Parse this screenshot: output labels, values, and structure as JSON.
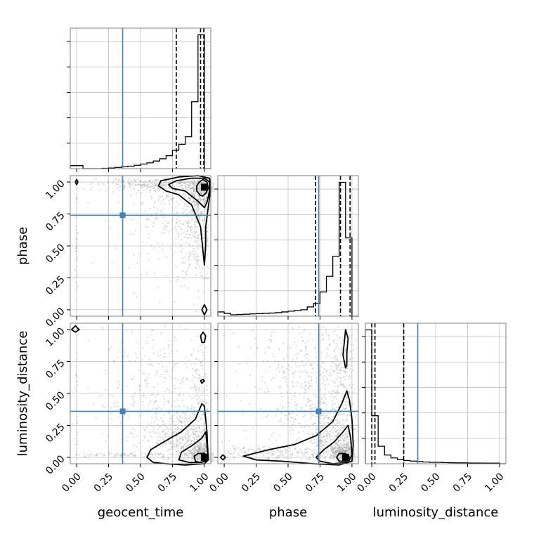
{
  "chart_data": {
    "type": "corner",
    "parameters": [
      "geocent_time",
      "phase",
      "luminosity_distance"
    ],
    "axis_labels": {
      "x": [
        "geocent_time",
        "phase",
        "luminosity_distance"
      ],
      "y": [
        "phase",
        "luminosity_distance"
      ]
    },
    "tick_labels": [
      "0.00",
      "0.25",
      "0.50",
      "0.75",
      "1.00"
    ],
    "tick_values": [
      0.0,
      0.25,
      0.5,
      0.75,
      1.0
    ],
    "axis_range": [
      -0.05,
      1.05
    ],
    "grid": true,
    "colors": {
      "hist": "#000000",
      "truth": "#4682b4",
      "contour": "#000000",
      "scatter": "#9a9a9a"
    },
    "truth_values": {
      "geocent_time": 0.36,
      "phase": 0.74,
      "luminosity_distance": 0.36
    },
    "quantiles": {
      "geocent_time": [
        0.78,
        0.97,
        0.995
      ],
      "phase": [
        0.715,
        0.91,
        0.985
      ],
      "luminosity_distance": [
        0.0,
        0.025,
        0.25
      ]
    },
    "histograms": {
      "geocent_time": {
        "bin_edges": [
          -0.05,
          0.0,
          0.05,
          0.1,
          0.15,
          0.2,
          0.25,
          0.3,
          0.35,
          0.4,
          0.45,
          0.5,
          0.55,
          0.6,
          0.65,
          0.7,
          0.75,
          0.8,
          0.85,
          0.9,
          0.95,
          1.0,
          1.05
        ],
        "counts": [
          0.02,
          0.02,
          0.0,
          0.0,
          0.0,
          0.002,
          0.004,
          0.008,
          0.012,
          0.016,
          0.022,
          0.03,
          0.038,
          0.05,
          0.065,
          0.085,
          0.12,
          0.16,
          0.21,
          0.44,
          0.88,
          0.0
        ]
      },
      "phase": {
        "bin_edges": [
          -0.05,
          0.0,
          0.05,
          0.1,
          0.15,
          0.2,
          0.25,
          0.3,
          0.35,
          0.4,
          0.45,
          0.5,
          0.55,
          0.6,
          0.65,
          0.7,
          0.75,
          0.8,
          0.85,
          0.9,
          0.95,
          1.0,
          1.05
        ],
        "counts": [
          0.03,
          0.02,
          0.01,
          0.012,
          0.014,
          0.016,
          0.018,
          0.02,
          0.022,
          0.025,
          0.03,
          0.035,
          0.04,
          0.045,
          0.065,
          0.09,
          0.17,
          0.28,
          0.42,
          0.94,
          0.55,
          0.0
        ]
      },
      "luminosity_distance": {
        "bin_edges": [
          -0.05,
          0.0,
          0.05,
          0.1,
          0.15,
          0.2,
          0.25,
          0.3,
          0.35,
          0.4,
          0.45,
          0.5,
          0.55,
          0.6,
          0.65,
          0.7,
          0.75,
          0.8,
          0.85,
          0.9,
          0.95,
          1.0,
          1.05
        ],
        "counts": [
          0.92,
          0.33,
          0.12,
          0.06,
          0.04,
          0.03,
          0.022,
          0.018,
          0.015,
          0.012,
          0.01,
          0.01,
          0.008,
          0.007,
          0.006,
          0.006,
          0.005,
          0.005,
          0.004,
          0.004,
          0.004,
          0.0
        ]
      }
    },
    "scatter_density": {
      "phase_vs_geocent_time": [
        {
          "cx": 0.97,
          "cy": 0.93,
          "sx": 0.06,
          "sy": 0.07,
          "n": 260
        },
        {
          "cx": 0.95,
          "cy": 0.7,
          "sx": 0.08,
          "sy": 0.25,
          "n": 420
        },
        {
          "cx": 0.6,
          "cy": 0.98,
          "sx": 0.22,
          "sy": 0.03,
          "n": 260
        },
        {
          "cx": 0.75,
          "cy": 0.75,
          "sx": 0.22,
          "sy": 0.22,
          "n": 300
        },
        {
          "cx": 0.0,
          "cy": 0.5,
          "sx": 0.004,
          "sy": 0.3,
          "n": 40
        }
      ],
      "luminosity_distance_vs_geocent_time": [
        {
          "cx": 0.97,
          "cy": 0.03,
          "sx": 0.05,
          "sy": 0.04,
          "n": 320
        },
        {
          "cx": 0.85,
          "cy": 0.15,
          "sx": 0.12,
          "sy": 0.12,
          "n": 380
        },
        {
          "cx": 0.7,
          "cy": 0.45,
          "sx": 0.25,
          "sy": 0.3,
          "n": 500
        },
        {
          "cx": 0.97,
          "cy": 0.7,
          "sx": 0.03,
          "sy": 0.3,
          "n": 80
        },
        {
          "cx": 0.35,
          "cy": 0.02,
          "sx": 0.2,
          "sy": 0.01,
          "n": 90
        },
        {
          "cx": 0.0,
          "cy": 0.4,
          "sx": 0.004,
          "sy": 0.35,
          "n": 40
        }
      ],
      "luminosity_distance_vs_phase": [
        {
          "cx": 0.93,
          "cy": 0.03,
          "sx": 0.05,
          "sy": 0.04,
          "n": 320
        },
        {
          "cx": 0.85,
          "cy": 0.15,
          "sx": 0.1,
          "sy": 0.12,
          "n": 340
        },
        {
          "cx": 0.75,
          "cy": 0.5,
          "sx": 0.18,
          "sy": 0.3,
          "n": 420
        },
        {
          "cx": 0.93,
          "cy": 0.75,
          "sx": 0.04,
          "sy": 0.25,
          "n": 140
        },
        {
          "cx": 0.35,
          "cy": 0.04,
          "sx": 0.25,
          "sy": 0.03,
          "n": 180
        },
        {
          "cx": 0.45,
          "cy": 0.55,
          "sx": 0.25,
          "sy": 0.3,
          "n": 180
        }
      ]
    },
    "contours": {
      "phase_vs_geocent_time": [
        [
          [
            0.965,
            0.9
          ],
          [
            0.94,
            0.93
          ],
          [
            0.94,
            0.97
          ],
          [
            0.96,
            1.0
          ],
          [
            0.99,
            1.02
          ],
          [
            1.02,
            1.0
          ],
          [
            1.03,
            0.95
          ],
          [
            1.01,
            0.91
          ],
          [
            0.985,
            0.89
          ],
          [
            0.965,
            0.9
          ]
        ],
        [
          [
            0.85,
            0.93
          ],
          [
            0.75,
            0.95
          ],
          [
            0.72,
            0.98
          ],
          [
            0.78,
            1.01
          ],
          [
            0.9,
            1.03
          ],
          [
            1.0,
            1.03
          ],
          [
            1.04,
            1.0
          ],
          [
            1.04,
            0.93
          ],
          [
            1.02,
            0.84
          ],
          [
            1.0,
            0.8
          ],
          [
            0.95,
            0.85
          ],
          [
            0.85,
            0.93
          ]
        ],
        [
          [
            0.64,
            0.97
          ],
          [
            0.66,
            1.01
          ],
          [
            0.8,
            1.04
          ],
          [
            0.95,
            1.05
          ],
          [
            1.04,
            1.03
          ],
          [
            1.05,
            0.95
          ],
          [
            1.03,
            0.8
          ],
          [
            1.01,
            0.65
          ],
          [
            1.01,
            0.5
          ],
          [
            1.0,
            0.35
          ],
          [
            0.99,
            0.45
          ],
          [
            0.97,
            0.65
          ],
          [
            0.9,
            0.82
          ],
          [
            0.8,
            0.9
          ],
          [
            0.7,
            0.93
          ],
          [
            0.64,
            0.97
          ]
        ],
        [
          [
            0.0,
            0.98
          ],
          [
            -0.01,
            1.0
          ],
          [
            0.0,
            1.02
          ],
          [
            0.01,
            1.0
          ],
          [
            0.0,
            0.98
          ]
        ],
        [
          [
            1.0,
            -0.04
          ],
          [
            0.98,
            0.0
          ],
          [
            1.0,
            0.04
          ],
          [
            1.02,
            0.0
          ],
          [
            1.0,
            -0.04
          ]
        ]
      ],
      "luminosity_distance_vs_geocent_time": [
        [
          [
            0.93,
            -0.03
          ],
          [
            0.92,
            0.01
          ],
          [
            0.95,
            0.03
          ],
          [
            1.0,
            0.03
          ],
          [
            1.03,
            0.0
          ],
          [
            1.01,
            -0.03
          ],
          [
            0.96,
            -0.04
          ],
          [
            0.93,
            -0.03
          ]
        ],
        [
          [
            0.8,
            -0.02
          ],
          [
            0.82,
            0.04
          ],
          [
            0.9,
            0.09
          ],
          [
            0.98,
            0.15
          ],
          [
            1.01,
            0.2
          ],
          [
            1.02,
            0.1
          ],
          [
            1.03,
            -0.02
          ],
          [
            0.98,
            -0.04
          ],
          [
            0.88,
            -0.04
          ],
          [
            0.8,
            -0.02
          ]
        ],
        [
          [
            0.55,
            0.0
          ],
          [
            0.58,
            0.06
          ],
          [
            0.68,
            0.12
          ],
          [
            0.82,
            0.2
          ],
          [
            0.93,
            0.3
          ],
          [
            0.98,
            0.42
          ],
          [
            1.0,
            0.4
          ],
          [
            1.02,
            0.2
          ],
          [
            1.03,
            -0.02
          ],
          [
            1.0,
            -0.05
          ],
          [
            0.85,
            -0.06
          ],
          [
            0.7,
            -0.05
          ],
          [
            0.6,
            -0.04
          ],
          [
            0.55,
            0.0
          ]
        ],
        [
          [
            0.98,
            0.9
          ],
          [
            0.97,
            0.95
          ],
          [
            0.99,
            0.98
          ],
          [
            1.01,
            0.95
          ],
          [
            1.0,
            0.9
          ],
          [
            0.98,
            0.9
          ]
        ],
        [
          [
            0.98,
            0.58
          ],
          [
            0.97,
            0.6
          ],
          [
            0.99,
            0.61
          ],
          [
            1.0,
            0.6
          ],
          [
            0.98,
            0.58
          ]
        ],
        [
          [
            -0.01,
            0.98
          ],
          [
            -0.04,
            1.0
          ],
          [
            -0.01,
            1.03
          ],
          [
            0.02,
            1.0
          ],
          [
            -0.01,
            0.98
          ]
        ]
      ],
      "luminosity_distance_vs_phase": [
        [
          [
            0.9,
            -0.03
          ],
          [
            0.88,
            0.0
          ],
          [
            0.9,
            0.03
          ],
          [
            0.95,
            0.03
          ],
          [
            0.98,
            0.0
          ],
          [
            0.96,
            -0.03
          ],
          [
            0.9,
            -0.03
          ]
        ],
        [
          [
            0.72,
            0.0
          ],
          [
            0.78,
            0.06
          ],
          [
            0.86,
            0.12
          ],
          [
            0.93,
            0.2
          ],
          [
            0.97,
            0.25
          ],
          [
            0.99,
            0.15
          ],
          [
            1.0,
            0.02
          ],
          [
            0.97,
            -0.04
          ],
          [
            0.85,
            -0.05
          ],
          [
            0.75,
            -0.03
          ],
          [
            0.72,
            0.0
          ]
        ],
        [
          [
            0.15,
            0.01
          ],
          [
            0.35,
            0.06
          ],
          [
            0.55,
            0.1
          ],
          [
            0.72,
            0.17
          ],
          [
            0.85,
            0.28
          ],
          [
            0.92,
            0.42
          ],
          [
            0.96,
            0.52
          ],
          [
            0.98,
            0.45
          ],
          [
            1.0,
            0.3
          ],
          [
            1.01,
            0.1
          ],
          [
            1.0,
            -0.03
          ],
          [
            0.9,
            -0.06
          ],
          [
            0.7,
            -0.05
          ],
          [
            0.45,
            -0.03
          ],
          [
            0.25,
            -0.02
          ],
          [
            0.15,
            0.01
          ]
        ],
        [
          [
            0.95,
            0.7
          ],
          [
            0.93,
            0.8
          ],
          [
            0.94,
            0.9
          ],
          [
            0.95,
            1.0
          ],
          [
            0.97,
            0.93
          ],
          [
            0.96,
            0.82
          ],
          [
            0.96,
            0.72
          ],
          [
            0.95,
            0.7
          ]
        ],
        [
          [
            -0.01,
            -0.02
          ],
          [
            -0.03,
            0.0
          ],
          [
            -0.01,
            0.02
          ],
          [
            0.01,
            0.0
          ],
          [
            -0.01,
            -0.02
          ]
        ]
      ]
    },
    "dense_blocks": {
      "phase_vs_geocent_time": [
        {
          "x": 1.0,
          "y": 0.96
        }
      ],
      "luminosity_distance_vs_geocent_time": [
        {
          "x": 1.0,
          "y": 0.0
        }
      ],
      "luminosity_distance_vs_phase": [
        {
          "x": 0.95,
          "y": 0.0
        }
      ]
    }
  }
}
